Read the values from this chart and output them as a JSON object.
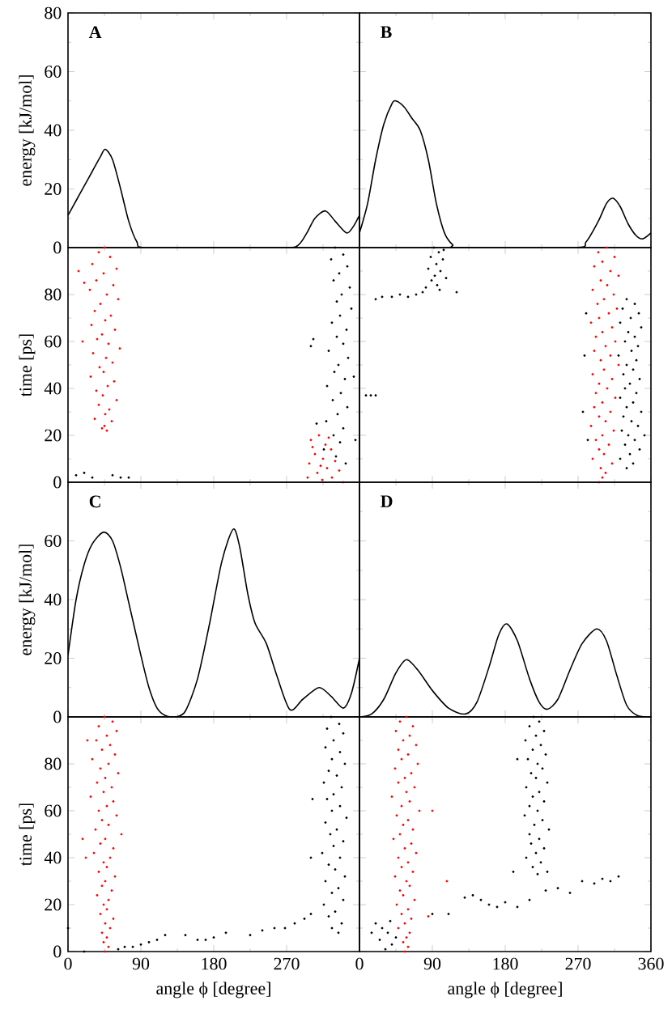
{
  "chart_data": [
    {
      "type": "line",
      "annotations": [
        "A"
      ],
      "ylabel": "energy [kJ/mol]",
      "color": "#000000",
      "tick_labels": "y",
      "x": [
        0,
        10,
        20,
        30,
        40,
        46,
        55,
        65,
        75,
        85,
        95,
        180,
        270,
        285,
        295,
        305,
        318,
        330,
        344,
        352,
        360
      ],
      "values": [
        11,
        16,
        21,
        26,
        31,
        33.5,
        30,
        20,
        9,
        2,
        0,
        0,
        0,
        1,
        5,
        10,
        12.5,
        9,
        5,
        7,
        11
      ],
      "xlim": [
        0,
        360
      ],
      "xticks": [
        0,
        90,
        180,
        270,
        360
      ],
      "ylim": [
        0,
        80
      ],
      "yticks": [
        0,
        20,
        40,
        60,
        80
      ]
    },
    {
      "type": "line",
      "annotations": [
        "B"
      ],
      "color": "#000000",
      "tick_labels": false,
      "x": [
        0,
        10,
        20,
        30,
        40,
        45,
        55,
        65,
        75,
        85,
        95,
        105,
        115,
        125,
        265,
        280,
        295,
        305,
        313,
        322,
        332,
        342,
        350,
        360
      ],
      "values": [
        5,
        15,
        30,
        42,
        49,
        50,
        48,
        44,
        40,
        30,
        15,
        5,
        1,
        0,
        0,
        2,
        9,
        15,
        16.8,
        14,
        8,
        4,
        3,
        5
      ],
      "xlim": [
        0,
        360
      ],
      "xticks": [
        0,
        90,
        180,
        270,
        360
      ],
      "ylim": [
        0,
        80
      ],
      "yticks": [
        0,
        20,
        40,
        60,
        80
      ]
    },
    {
      "type": "scatter",
      "ylabel": "time [ps]",
      "marker": "circle",
      "tick_labels": "y",
      "xlim": [
        0,
        360
      ],
      "xticks": [
        0,
        90,
        180,
        270,
        360
      ],
      "ylim": [
        0,
        100
      ],
      "yticks": [
        0,
        20,
        40,
        60,
        80
      ],
      "series": [
        {
          "color": "#ff0000",
          "x": [
            45,
            38,
            52,
            30,
            60,
            44,
            35,
            56,
            27,
            48,
            62,
            40,
            33,
            53,
            46,
            29,
            58,
            42,
            36,
            50,
            64,
            31,
            47,
            55,
            39,
            44,
            28,
            57,
            49,
            35,
            43,
            60,
            38,
            51,
            46,
            33,
            54,
            45,
            48,
            42,
            13,
            20,
            18,
            300,
            310,
            318,
            305,
            325,
            315,
            298,
            330,
            320,
            308,
            326,
            314,
            335,
            302,
            322,
            312,
            340,
            296
          ],
          "values": [
            100,
            98,
            96,
            93,
            91,
            89,
            86,
            84,
            82,
            80,
            78,
            76,
            73,
            71,
            69,
            67,
            65,
            63,
            61,
            59,
            57,
            55,
            53,
            51,
            49,
            47,
            45,
            43,
            41,
            39,
            37,
            35,
            33,
            31,
            29,
            27,
            26,
            24,
            22,
            23,
            90,
            85,
            60,
            18,
            20,
            16,
            12,
            14,
            10,
            8,
            9,
            6,
            4,
            2,
            1,
            5,
            15,
            19,
            7,
            0,
            2
          ]
        },
        {
          "color": "#000000",
          "x": [
            330,
            340,
            325,
            345,
            335,
            328,
            348,
            338,
            332,
            350,
            336,
            326,
            344,
            332,
            340,
            322,
            346,
            334,
            329,
            342,
            320,
            337,
            327,
            345,
            333,
            319,
            340,
            328,
            336,
            316,
            331,
            343,
            303,
            300,
            353,
            307,
            355,
            10,
            20,
            30,
            55,
            65,
            75
          ],
          "values": [
            100,
            97,
            95,
            92,
            89,
            86,
            83,
            80,
            77,
            74,
            71,
            68,
            65,
            62,
            59,
            56,
            53,
            50,
            47,
            44,
            41,
            38,
            35,
            32,
            29,
            26,
            23,
            20,
            17,
            14,
            11,
            8,
            61,
            58,
            45,
            25,
            18,
            3,
            4,
            2,
            3,
            2,
            2
          ]
        }
      ]
    },
    {
      "type": "scatter",
      "marker": "circle",
      "tick_labels": false,
      "xlim": [
        0,
        360
      ],
      "xticks": [
        0,
        90,
        180,
        270,
        360
      ],
      "ylim": [
        0,
        100
      ],
      "yticks": [
        0,
        20,
        40,
        60,
        80,
        100
      ],
      "series": [
        {
          "color": "#000000",
          "x": [
            92,
            98,
            88,
            103,
            95,
            85,
            100,
            93,
            107,
            89,
            96,
            82,
            99,
            78,
            70,
            60,
            50,
            40,
            28,
            20,
            120,
            104
          ],
          "values": [
            100,
            98,
            96,
            95,
            93,
            91,
            90,
            88,
            87,
            86,
            84,
            83,
            82,
            81,
            80,
            79,
            80,
            79,
            79,
            78,
            81,
            99
          ]
        },
        {
          "color": "#ff0000",
          "x": [
            305,
            295,
            315,
            300,
            290,
            310,
            320,
            298,
            306,
            288,
            314,
            302,
            294,
            318,
            308,
            296,
            286,
            312,
            300,
            292,
            316,
            304,
            290,
            310,
            298,
            320,
            302,
            288,
            312,
            296,
            306,
            292,
            316,
            300,
            290,
            310,
            296,
            304,
            286,
            314,
            300,
            292,
            308,
            296,
            302,
            288,
            312,
            298,
            304,
            300,
            296
          ],
          "values": [
            100,
            98,
            96,
            94,
            92,
            90,
            88,
            86,
            84,
            82,
            80,
            78,
            76,
            74,
            72,
            70,
            68,
            66,
            64,
            62,
            60,
            58,
            56,
            54,
            52,
            50,
            48,
            46,
            44,
            42,
            40,
            38,
            36,
            34,
            32,
            30,
            28,
            26,
            24,
            22,
            20,
            18,
            16,
            14,
            12,
            10,
            8,
            6,
            4,
            2,
            0
          ]
        },
        {
          "color": "#000000",
          "x": [
            330,
            340,
            325,
            345,
            335,
            322,
            348,
            332,
            340,
            328,
            344,
            336,
            320,
            342,
            330,
            338,
            326,
            346,
            334,
            328,
            342,
            322,
            338,
            330,
            348,
            326,
            336,
            344,
            324,
            332,
            340,
            328,
            346,
            334,
            322,
            338,
            330,
            352,
            280,
            278,
            276,
            282,
            8,
            14,
            20
          ],
          "values": [
            78,
            76,
            74,
            72,
            70,
            68,
            66,
            64,
            62,
            60,
            58,
            56,
            54,
            52,
            50,
            48,
            46,
            44,
            42,
            40,
            38,
            36,
            34,
            32,
            30,
            28,
            26,
            24,
            22,
            20,
            18,
            16,
            14,
            12,
            10,
            8,
            6,
            20,
            72,
            54,
            30,
            18,
            37,
            37,
            37
          ]
        }
      ]
    },
    {
      "type": "line",
      "annotations": [
        "C"
      ],
      "ylabel": "energy [kJ/mol]",
      "color": "#000000",
      "tick_labels": "y",
      "x": [
        0,
        10,
        20,
        30,
        44,
        55,
        65,
        75,
        90,
        100,
        110,
        120,
        133,
        145,
        160,
        175,
        190,
        204,
        212,
        222,
        231,
        245,
        258,
        274,
        290,
        310,
        325,
        340,
        350,
        360
      ],
      "values": [
        21,
        40,
        52,
        59,
        63,
        60,
        51,
        39,
        21,
        10,
        3,
        0.5,
        0,
        2,
        13,
        32,
        53,
        64,
        58,
        42,
        32,
        25,
        14,
        2.5,
        6,
        10,
        7,
        3,
        8,
        20
      ],
      "xlim": [
        0,
        360
      ],
      "xticks": [
        0,
        90,
        180,
        270,
        360
      ],
      "ylim": [
        0,
        80
      ],
      "yticks": [
        0,
        20,
        40,
        60
      ]
    },
    {
      "type": "line",
      "annotations": [
        "D"
      ],
      "color": "#000000",
      "tick_labels": false,
      "x": [
        0,
        15,
        30,
        45,
        58,
        72,
        90,
        110,
        131,
        145,
        160,
        172,
        182,
        195,
        210,
        222,
        232,
        245,
        260,
        275,
        293,
        305,
        318,
        330,
        343,
        360
      ],
      "values": [
        0,
        1,
        6,
        15,
        19.5,
        16,
        9,
        3,
        1,
        5,
        17,
        28,
        31.7,
        26,
        13,
        5,
        2.6,
        6,
        16,
        25,
        30,
        26,
        14,
        4,
        0.5,
        0
      ],
      "xlim": [
        0,
        360
      ],
      "xticks": [
        0,
        90,
        180,
        270,
        360
      ],
      "ylim": [
        0,
        80
      ],
      "yticks": [
        0,
        20,
        40,
        60,
        80
      ]
    },
    {
      "type": "scatter",
      "ylabel": "time [ps]",
      "xlabel": "angle ϕ [degree]",
      "marker": "circle",
      "xlim": [
        0,
        360
      ],
      "xticks": [
        0,
        90,
        180,
        270
      ],
      "ylim": [
        0,
        100
      ],
      "yticks": [
        0,
        20,
        40,
        60,
        80
      ],
      "series": [
        {
          "color": "#ff0000",
          "x": [
            45,
            55,
            38,
            60,
            48,
            35,
            52,
            42,
            58,
            30,
            50,
            40,
            62,
            46,
            36,
            54,
            44,
            28,
            56,
            48,
            38,
            60,
            42,
            50,
            34,
            66,
            46,
            40,
            56,
            32,
            52,
            44,
            48,
            38,
            58,
            46,
            42,
            54,
            36,
            50,
            44,
            48,
            40,
            56,
            46,
            52,
            42,
            48,
            44,
            50,
            46,
            18,
            22,
            24
          ],
          "values": [
            100,
            98,
            96,
            94,
            92,
            90,
            88,
            86,
            84,
            82,
            80,
            78,
            76,
            74,
            72,
            70,
            68,
            66,
            64,
            62,
            60,
            58,
            56,
            54,
            52,
            50,
            48,
            46,
            44,
            42,
            40,
            38,
            36,
            34,
            32,
            30,
            28,
            26,
            24,
            22,
            20,
            18,
            16,
            14,
            12,
            10,
            8,
            6,
            4,
            2,
            0,
            48,
            40,
            90
          ]
        },
        {
          "color": "#000000",
          "x": [
            325,
            335,
            320,
            340,
            328,
            318,
            336,
            326,
            342,
            322,
            332,
            316,
            338,
            328,
            320,
            336,
            326,
            344,
            318,
            332,
            324,
            340,
            328,
            314,
            336,
            322,
            330,
            342,
            318,
            334,
            326,
            340,
            316,
            330,
            322,
            338,
            326,
            334,
            300,
            302,
            62,
            70,
            80,
            90,
            100,
            110,
            120,
            145,
            160,
            170,
            180,
            195,
            225,
            240,
            255,
            268,
            280,
            292,
            300,
            20,
            0
          ],
          "values": [
            100,
            97,
            95,
            93,
            90,
            87,
            85,
            82,
            80,
            77,
            75,
            72,
            70,
            67,
            65,
            62,
            60,
            57,
            55,
            52,
            50,
            47,
            45,
            42,
            40,
            37,
            35,
            32,
            30,
            27,
            25,
            22,
            20,
            17,
            15,
            12,
            10,
            8,
            40,
            65,
            1,
            2,
            2,
            3,
            4,
            5,
            7,
            7,
            5,
            5,
            6,
            8,
            7,
            9,
            10,
            10,
            12,
            14,
            16,
            0,
            10
          ]
        }
      ]
    },
    {
      "type": "scatter",
      "xlabel": "angle ϕ [degree]",
      "marker": "circle",
      "tick_labels": "x",
      "xlim": [
        0,
        360
      ],
      "xticks": [
        0,
        90,
        180,
        270,
        360
      ],
      "ylim": [
        0,
        100
      ],
      "yticks": [
        0,
        20,
        40,
        60,
        80,
        100
      ],
      "series": [
        {
          "color": "#ff0000",
          "x": [
            58,
            50,
            66,
            45,
            62,
            54,
            70,
            48,
            60,
            52,
            72,
            44,
            64,
            56,
            48,
            68,
            58,
            40,
            62,
            52,
            74,
            46,
            60,
            54,
            66,
            50,
            42,
            64,
            56,
            70,
            48,
            60,
            52,
            66,
            44,
            58,
            62,
            50,
            54,
            68,
            46,
            60,
            52,
            64,
            56,
            48,
            62,
            58,
            54,
            60,
            56,
            90,
            108,
            85
          ],
          "values": [
            100,
            98,
            96,
            94,
            92,
            90,
            88,
            86,
            84,
            82,
            80,
            78,
            76,
            74,
            72,
            70,
            68,
            66,
            64,
            62,
            60,
            58,
            56,
            54,
            52,
            50,
            48,
            46,
            44,
            42,
            40,
            38,
            36,
            34,
            32,
            30,
            28,
            26,
            24,
            22,
            20,
            18,
            16,
            14,
            12,
            10,
            8,
            6,
            4,
            2,
            0,
            60,
            30,
            15
          ]
        },
        {
          "color": "#000000",
          "x": [
            215,
            222,
            210,
            228,
            218,
            205,
            224,
            214,
            230,
            208,
            220,
            226,
            212,
            218,
            232,
            206,
            222,
            214,
            228,
            210,
            220,
            204,
            226,
            216,
            234,
            210,
            222,
            212,
            228,
            218,
            206,
            224,
            214,
            232,
            220,
            195,
            190,
            20,
            28,
            35,
            25,
            40,
            32,
            45,
            15,
            38,
            90,
            110,
            130,
            140,
            150,
            160,
            170,
            180,
            195,
            210,
            230,
            245,
            260,
            275,
            290,
            300,
            310,
            320
          ],
          "values": [
            100,
            98,
            96,
            94,
            92,
            90,
            88,
            86,
            84,
            82,
            80,
            78,
            76,
            74,
            72,
            70,
            68,
            66,
            64,
            62,
            60,
            58,
            56,
            54,
            52,
            50,
            48,
            46,
            44,
            42,
            40,
            38,
            36,
            34,
            33,
            82,
            34,
            12,
            10,
            8,
            5,
            3,
            1,
            6,
            8,
            13,
            16,
            16,
            23,
            24,
            22,
            20,
            19,
            21,
            19,
            22,
            26,
            27,
            25,
            30,
            29,
            31,
            30,
            32
          ]
        }
      ]
    }
  ]
}
